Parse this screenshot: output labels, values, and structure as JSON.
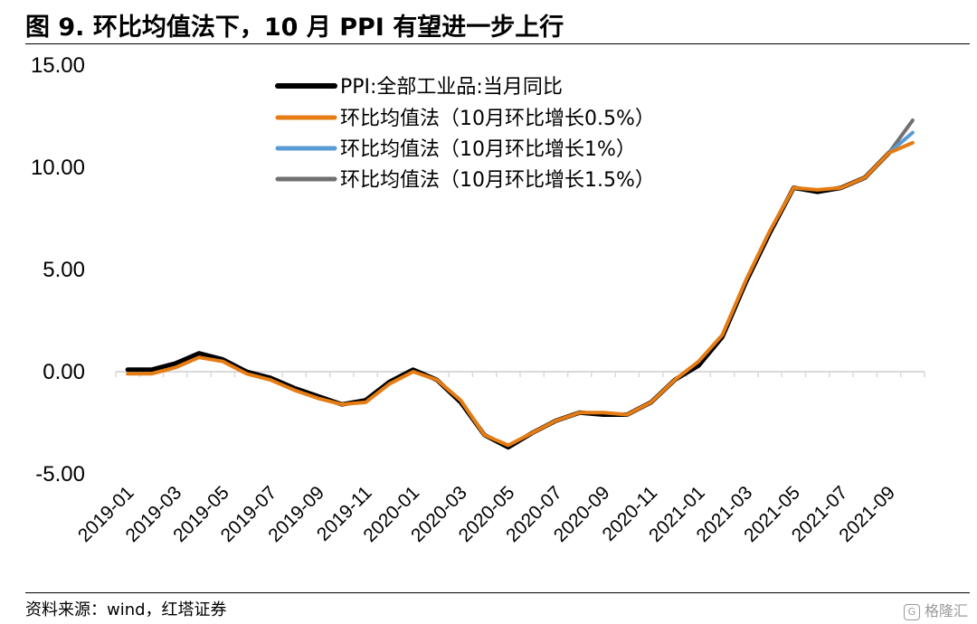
{
  "header": {
    "title": "图 9. 环比均值法下，10 月 PPI 有望进一步上行"
  },
  "footer": {
    "source": "资料来源：wind，红塔证券",
    "watermark": "格隆汇"
  },
  "chart_data": {
    "type": "line",
    "ylim": [
      -5,
      15
    ],
    "yticks": [
      "-5.00",
      "0.00",
      "5.00",
      "10.00",
      "15.00"
    ],
    "ytick_values": [
      -5,
      0,
      5,
      10,
      15
    ],
    "grid": false,
    "legend_position": "top",
    "categories": [
      "2019-01",
      "2019-02",
      "2019-03",
      "2019-04",
      "2019-05",
      "2019-06",
      "2019-07",
      "2019-08",
      "2019-09",
      "2019-10",
      "2019-11",
      "2019-12",
      "2020-01",
      "2020-02",
      "2020-03",
      "2020-04",
      "2020-05",
      "2020-06",
      "2020-07",
      "2020-08",
      "2020-09",
      "2020-10",
      "2020-11",
      "2020-12",
      "2021-01",
      "2021-02",
      "2021-03",
      "2021-04",
      "2021-05",
      "2021-06",
      "2021-07",
      "2021-08",
      "2021-09",
      "2021-10"
    ],
    "xtick_labels": [
      "2019-01",
      "2019-03",
      "2019-05",
      "2019-07",
      "2019-09",
      "2019-11",
      "2020-01",
      "2020-03",
      "2020-05",
      "2020-07",
      "2020-09",
      "2020-11",
      "2021-01",
      "2021-03",
      "2021-05",
      "2021-07",
      "2021-09"
    ],
    "series": [
      {
        "name": "PPI:全部工业品:当月同比",
        "color": "#000000",
        "width": 5,
        "values": [
          0.1,
          0.1,
          0.4,
          0.9,
          0.6,
          0.0,
          -0.3,
          -0.8,
          -1.2,
          -1.6,
          -1.4,
          -0.5,
          0.1,
          -0.4,
          -1.5,
          -3.1,
          -3.7,
          -3.0,
          -2.4,
          -2.0,
          -2.1,
          -2.1,
          -1.5,
          -0.4,
          0.3,
          1.7,
          4.4,
          6.8,
          9.0,
          8.8,
          9.0,
          9.5,
          10.7,
          null
        ]
      },
      {
        "name": "环比均值法（10月环比增长0.5%）",
        "color": "#E57C14",
        "width": 4,
        "values": [
          -0.1,
          -0.1,
          0.2,
          0.7,
          0.5,
          -0.1,
          -0.4,
          -0.9,
          -1.3,
          -1.6,
          -1.5,
          -0.6,
          0.0,
          -0.4,
          -1.4,
          -3.1,
          -3.6,
          -3.0,
          -2.4,
          -2.0,
          -2.0,
          -2.1,
          -1.5,
          -0.4,
          0.5,
          1.8,
          4.5,
          6.9,
          9.0,
          8.9,
          9.0,
          9.5,
          10.7,
          11.2
        ]
      },
      {
        "name": "环比均值法（10月环比增长1%）",
        "color": "#5B9BD5",
        "width": 4,
        "values": [
          null,
          null,
          null,
          null,
          null,
          null,
          null,
          null,
          null,
          null,
          null,
          null,
          null,
          null,
          null,
          null,
          null,
          null,
          null,
          null,
          null,
          null,
          null,
          null,
          null,
          null,
          null,
          null,
          null,
          null,
          null,
          null,
          10.7,
          11.7
        ]
      },
      {
        "name": "环比均值法（10月环比增长1.5%）",
        "color": "#707070",
        "width": 4,
        "values": [
          null,
          null,
          null,
          null,
          null,
          null,
          null,
          null,
          null,
          null,
          null,
          null,
          null,
          null,
          null,
          null,
          null,
          null,
          null,
          null,
          null,
          null,
          null,
          null,
          null,
          null,
          null,
          null,
          null,
          null,
          null,
          null,
          10.7,
          12.3
        ]
      }
    ]
  }
}
